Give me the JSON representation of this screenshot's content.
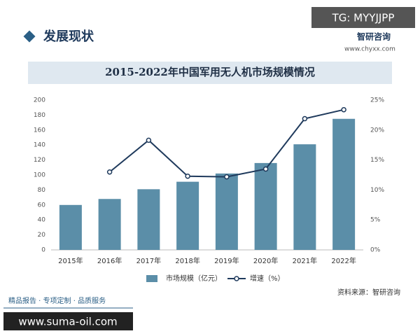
{
  "header": {
    "badge": "TG: MYYJJPP",
    "section": "发展现状",
    "brand": "智研咨询",
    "site": "www.chyxx.com"
  },
  "chart_data": {
    "type": "bar",
    "title": "2015-2022年中国军用无人机市场规模情况",
    "categories": [
      "2015年",
      "2016年",
      "2017年",
      "2018年",
      "2019年",
      "2020年",
      "2021年",
      "2022年"
    ],
    "series": [
      {
        "name": "市场规模（亿元）",
        "color": "#5b8ea8",
        "values": [
          60,
          68,
          81,
          91,
          102,
          116,
          141,
          175
        ]
      },
      {
        "name": "增速（%）",
        "color": "#1f3a5c",
        "axis": "y2",
        "values": [
          null,
          13.0,
          18.3,
          12.3,
          12.2,
          13.5,
          21.9,
          23.4
        ]
      }
    ],
    "ylim": [
      0,
      200
    ],
    "yticks": [
      0,
      20,
      40,
      60,
      80,
      100,
      120,
      140,
      160,
      180,
      200
    ],
    "y2lim": [
      0,
      25
    ],
    "y2ticks": [
      {
        "value": 0,
        "label": "0%"
      },
      {
        "value": 5,
        "label": "5%"
      },
      {
        "value": 10,
        "label": "10%"
      },
      {
        "value": 15,
        "label": "15%"
      },
      {
        "value": 20,
        "label": "20%"
      },
      {
        "value": 25,
        "label": "25%"
      }
    ],
    "source": "资料来源：智研咨询"
  },
  "footer": {
    "tagline": "精品报告 · 专项定制 · 品质服务",
    "watermark": "www.suma-oil.com"
  }
}
